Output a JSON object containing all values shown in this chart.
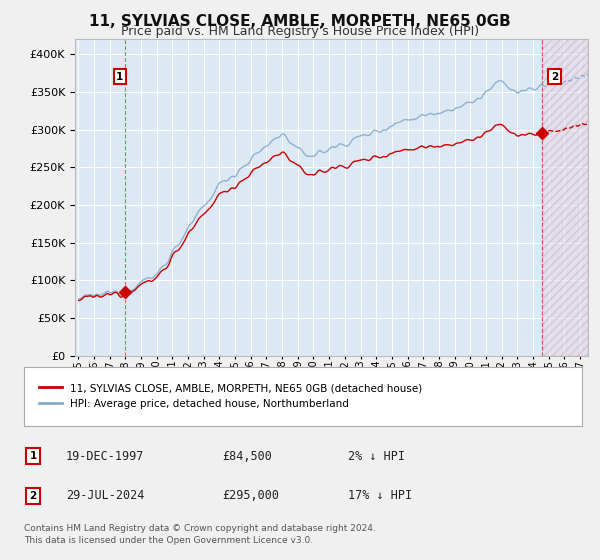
{
  "title": "11, SYLVIAS CLOSE, AMBLE, MORPETH, NE65 0GB",
  "subtitle": "Price paid vs. HM Land Registry's House Price Index (HPI)",
  "title_fontsize": 11,
  "subtitle_fontsize": 9,
  "bg_color": "#f0f0f0",
  "plot_bg_color": "#dce8f4",
  "grid_color": "#ffffff",
  "legend_label_property": "11, SYLVIAS CLOSE, AMBLE, MORPETH, NE65 0GB (detached house)",
  "legend_label_hpi": "HPI: Average price, detached house, Northumberland",
  "annotation1_date": "19-DEC-1997",
  "annotation1_price": "£84,500",
  "annotation1_text": "2% ↓ HPI",
  "annotation2_date": "29-JUL-2024",
  "annotation2_price": "£295,000",
  "annotation2_text": "17% ↓ HPI",
  "footer_text": "Contains HM Land Registry data © Crown copyright and database right 2024.\nThis data is licensed under the Open Government Licence v3.0.",
  "sale1_year": 1997.96,
  "sale1_price": 84500,
  "sale2_year": 2024.57,
  "sale2_price": 295000,
  "property_color": "#cc0000",
  "hpi_color": "#88aacc",
  "ylim": [
    0,
    420000
  ],
  "xlim_start": 1994.8,
  "xlim_end": 2027.5,
  "xtick_years": [
    1995,
    1996,
    1997,
    1998,
    1999,
    2000,
    2001,
    2002,
    2003,
    2004,
    2005,
    2006,
    2007,
    2008,
    2009,
    2010,
    2011,
    2012,
    2013,
    2014,
    2015,
    2016,
    2017,
    2018,
    2019,
    2020,
    2021,
    2022,
    2023,
    2024,
    2025,
    2026,
    2027
  ]
}
